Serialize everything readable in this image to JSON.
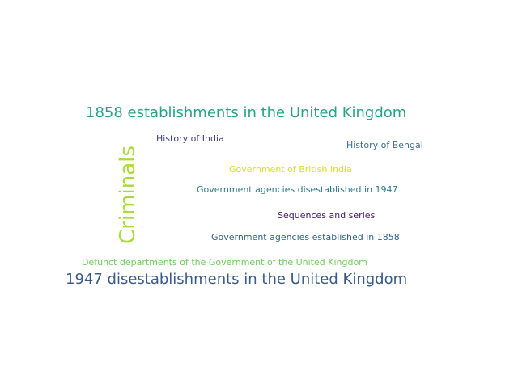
{
  "words": [
    {
      "text": "1858 establishments in the United Kingdom",
      "color": "#2aa18a"
    },
    {
      "text": "History of India",
      "color": "#433e85"
    },
    {
      "text": "History of Bengal",
      "color": "#3d6d8c"
    },
    {
      "text": "Government of British India",
      "color": "#d3e22a"
    },
    {
      "text": "Government agencies disestablished in 1947",
      "color": "#2f7b8e"
    },
    {
      "text": "Sequences and series",
      "color": "#471669"
    },
    {
      "text": "Government agencies established in 1858",
      "color": "#33638d"
    },
    {
      "text": "Defunct departments of the Government of the United Kingdom",
      "color": "#6ccd5a"
    },
    {
      "text": "1947 disestablishments in the United Kingdom",
      "color": "#3b5c8b"
    },
    {
      "text": "Criminals",
      "color": "#a8db34"
    }
  ]
}
